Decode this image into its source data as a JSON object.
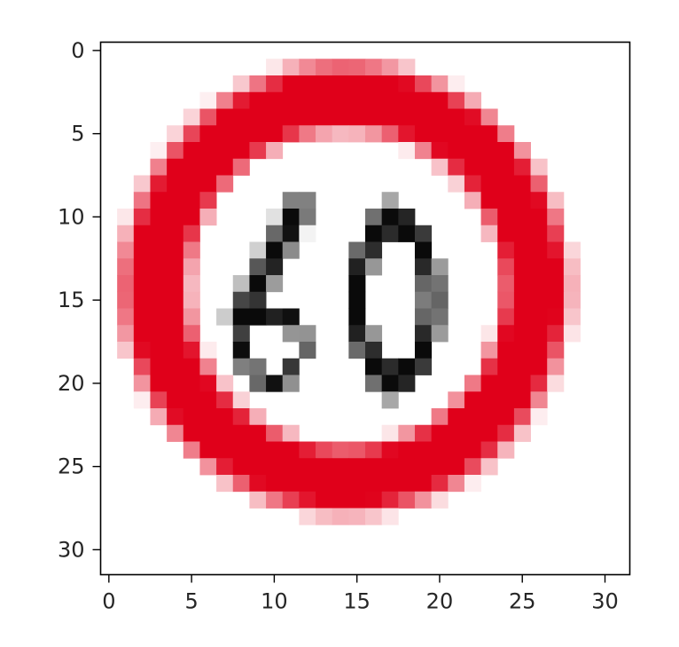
{
  "chart_data": {
    "type": "heatmap",
    "title": "",
    "xlabel": "",
    "ylabel": "",
    "xlim": [
      -0.5,
      31.5
    ],
    "ylim": [
      31.5,
      -0.5
    ],
    "y_inverted": true,
    "x_ticks": [
      0,
      5,
      10,
      15,
      20,
      25,
      30
    ],
    "y_ticks": [
      0,
      5,
      10,
      15,
      20,
      25,
      30
    ],
    "x_tick_labels": [
      "0",
      "5",
      "10",
      "15",
      "20",
      "25",
      "30"
    ],
    "y_tick_labels": [
      "0",
      "5",
      "10",
      "15",
      "20",
      "25",
      "30"
    ],
    "grid": false,
    "image_size": [
      32,
      32
    ],
    "content": "pixelated circular speed-limit sign: red ring, white interior, black digits",
    "sign_text": "60",
    "colors": {
      "ring": "#e0001a",
      "background": "#ffffff",
      "digits": "#0a0a0a"
    }
  }
}
